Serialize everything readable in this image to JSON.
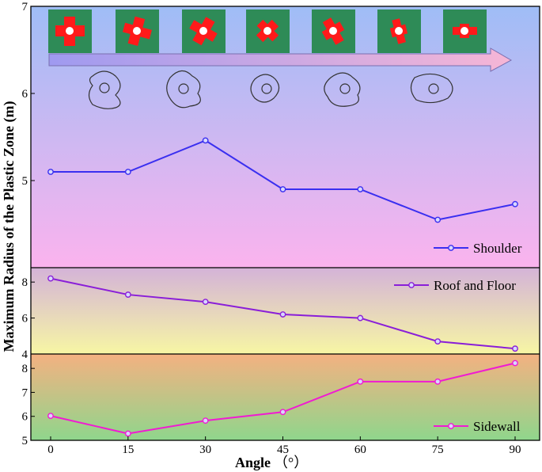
{
  "chart_data": {
    "type": "line",
    "x": [
      0,
      15,
      30,
      45,
      60,
      75,
      90
    ],
    "xticks": [
      "0",
      "15",
      "30",
      "45",
      "60",
      "75",
      "90"
    ],
    "xlabel": "Angle",
    "xlabel_unit": "（°）",
    "ylabel": "Maximum Radius of the Plastic Zone  (m)",
    "legend_placement": "bottom-right / top-right per panel",
    "panels": [
      {
        "series": [
          {
            "name": "Shoulder",
            "values": [
              5.1,
              5.1,
              5.46,
              4.9,
              4.9,
              4.55,
              4.73
            ],
            "color": "#3a2ff0"
          }
        ],
        "ylim": [
          4,
          7
        ],
        "yticks": [
          "5",
          "6",
          "7"
        ],
        "ytick_values": [
          5,
          6,
          7
        ],
        "background": [
          "#9fbdf6",
          "#fbb3ee"
        ]
      },
      {
        "series": [
          {
            "name": "Roof and Floor",
            "values": [
              8.2,
              7.3,
              6.9,
              6.2,
              6.0,
              4.7,
              4.3
            ],
            "color": "#8a1ed8"
          }
        ],
        "ylim": [
          4,
          8.8
        ],
        "yticks": [
          "4",
          "6",
          "8"
        ],
        "ytick_values": [
          4,
          6,
          8
        ],
        "background": [
          "#d4b3d8",
          "#f7f6a4"
        ]
      },
      {
        "series": [
          {
            "name": "Sidewall",
            "values": [
              6.02,
              5.28,
              5.82,
              6.18,
              7.45,
              7.45,
              8.22
            ],
            "color": "#f01bd2"
          }
        ],
        "ylim": [
          5,
          8.6
        ],
        "yticks": [
          "5",
          "6",
          "7",
          "8"
        ],
        "ytick_values": [
          5,
          6,
          7,
          8
        ],
        "background": [
          "#f4b181",
          "#8fd68c"
        ]
      }
    ]
  }
}
